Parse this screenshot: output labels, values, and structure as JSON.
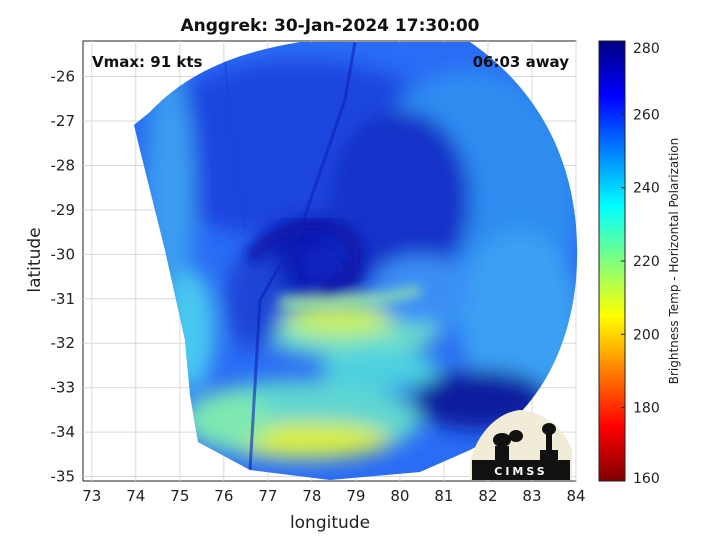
{
  "title": "Anggrek: 30-Jan-2024 17:30:00",
  "vmax_label": "Vmax: 91 kts",
  "away_label": "06:03 away",
  "axes": {
    "xlabel": "longitude",
    "ylabel": "latitude",
    "xlim": [
      72.8,
      84
    ],
    "ylim": [
      -35.1,
      -25.2
    ],
    "xticks": [
      "73",
      "74",
      "75",
      "76",
      "77",
      "78",
      "79",
      "80",
      "81",
      "82",
      "83",
      "84"
    ],
    "yticks": [
      "-26",
      "-27",
      "-28",
      "-29",
      "-30",
      "-31",
      "-32",
      "-33",
      "-34",
      "-35"
    ],
    "grid": true
  },
  "colorbar": {
    "label": "Brightness Temp - Horizontal Polarization",
    "range": [
      160,
      280
    ],
    "ticks": [
      "280",
      "260",
      "240",
      "220",
      "200",
      "180",
      "160"
    ],
    "colormap": "jet"
  },
  "logo": {
    "text": "CIMSS"
  },
  "storm_center": {
    "lon": 78.1,
    "lat": -30.2
  }
}
